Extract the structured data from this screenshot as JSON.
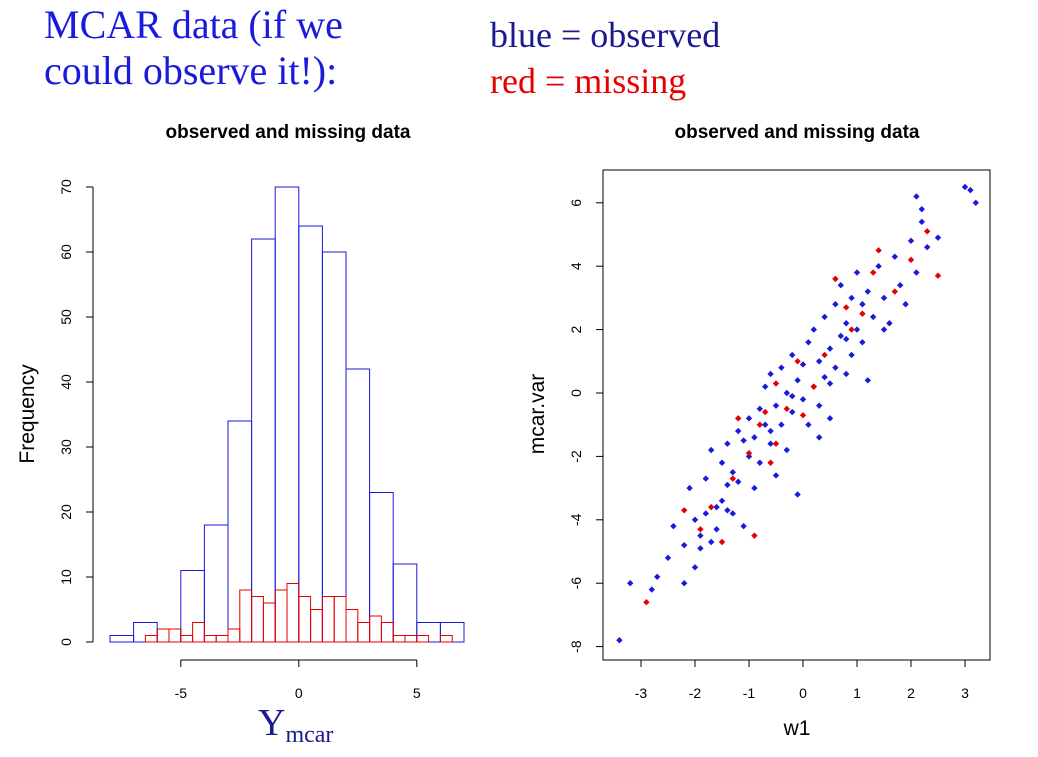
{
  "header": {
    "title": "MCAR data (if we\ncould observe it!):",
    "legend_blue": "blue = observed",
    "legend_red": "red = missing"
  },
  "colors": {
    "observed": "#1a1adc",
    "missing": "#e60000",
    "title": "#1a1adc"
  },
  "chart_data": [
    {
      "type": "bar",
      "subtype": "histogram",
      "title": "observed and missing data",
      "xlabel": "Y",
      "xlabel_subscript": "mcar",
      "ylabel": "Frequency",
      "xlim": [
        -8.5,
        7.5
      ],
      "ylim": [
        0,
        70
      ],
      "xticks": [
        -5,
        0,
        5
      ],
      "yticks": [
        0,
        10,
        20,
        30,
        40,
        50,
        60,
        70
      ],
      "series": [
        {
          "name": "observed",
          "bin_width": 1,
          "bin_starts": [
            -8,
            -7,
            -6,
            -5,
            -4,
            -3,
            -2,
            -1,
            0,
            1,
            2,
            3,
            4,
            5,
            6
          ],
          "values": [
            1,
            3,
            2,
            11,
            18,
            34,
            62,
            70,
            64,
            60,
            42,
            23,
            12,
            3,
            3
          ]
        },
        {
          "name": "missing",
          "bin_width": 0.5,
          "bin_starts": [
            -6.5,
            -6,
            -5.5,
            -5,
            -4.5,
            -4,
            -3.5,
            -3,
            -2.5,
            -2,
            -1.5,
            -1,
            -0.5,
            0,
            0.5,
            1,
            1.5,
            2,
            2.5,
            3,
            3.5,
            4,
            4.5,
            5,
            5.5,
            6
          ],
          "values": [
            1,
            2,
            2,
            1,
            3,
            1,
            1,
            2,
            8,
            7,
            6,
            8,
            9,
            7,
            5,
            7,
            7,
            5,
            3,
            4,
            3,
            1,
            1,
            1,
            0,
            1
          ]
        }
      ]
    },
    {
      "type": "scatter",
      "title": "observed and missing data",
      "xlabel": "w1",
      "ylabel": "mcar.var",
      "xlim": [
        -3.5,
        3.3
      ],
      "ylim": [
        -8.3,
        6.7
      ],
      "xticks": [
        -3,
        -2,
        -1,
        0,
        1,
        2,
        3
      ],
      "yticks": [
        -8,
        -6,
        -4,
        -2,
        0,
        2,
        4,
        6
      ],
      "series": [
        {
          "name": "observed",
          "points": [
            [
              -3.4,
              -7.8
            ],
            [
              -3.2,
              -6.0
            ],
            [
              -2.8,
              -6.2
            ],
            [
              -2.7,
              -5.8
            ],
            [
              -2.5,
              -5.2
            ],
            [
              -2.4,
              -4.2
            ],
            [
              -2.2,
              -6.0
            ],
            [
              -2.2,
              -4.8
            ],
            [
              -2.1,
              -3.0
            ],
            [
              -2.0,
              -4.0
            ],
            [
              -2.0,
              -5.5
            ],
            [
              -1.9,
              -4.5
            ],
            [
              -1.8,
              -3.8
            ],
            [
              -1.8,
              -2.7
            ],
            [
              -1.7,
              -4.7
            ],
            [
              -1.7,
              -1.8
            ],
            [
              -1.6,
              -3.6
            ],
            [
              -1.6,
              -4.3
            ],
            [
              -1.5,
              -3.4
            ],
            [
              -1.5,
              -2.2
            ],
            [
              -1.4,
              -2.9
            ],
            [
              -1.4,
              -1.6
            ],
            [
              -1.3,
              -2.5
            ],
            [
              -1.3,
              -3.8
            ],
            [
              -1.2,
              -1.2
            ],
            [
              -1.2,
              -2.8
            ],
            [
              -1.1,
              -1.5
            ],
            [
              -1.1,
              -4.2
            ],
            [
              -1.0,
              -2.0
            ],
            [
              -1.0,
              -0.8
            ],
            [
              -0.9,
              -1.4
            ],
            [
              -0.9,
              -3.0
            ],
            [
              -0.8,
              -0.5
            ],
            [
              -0.8,
              -2.2
            ],
            [
              -0.7,
              -1.0
            ],
            [
              -0.7,
              0.2
            ],
            [
              -0.6,
              -1.6
            ],
            [
              -0.6,
              0.6
            ],
            [
              -0.5,
              -0.4
            ],
            [
              -0.5,
              -2.6
            ],
            [
              -0.4,
              0.8
            ],
            [
              -0.4,
              -1.0
            ],
            [
              -0.3,
              0.0
            ],
            [
              -0.3,
              -1.8
            ],
            [
              -0.2,
              1.2
            ],
            [
              -0.2,
              -0.6
            ],
            [
              -0.1,
              0.4
            ],
            [
              -0.1,
              -3.2
            ],
            [
              0.0,
              0.9
            ],
            [
              0.0,
              -0.2
            ],
            [
              0.1,
              1.6
            ],
            [
              0.1,
              -1.0
            ],
            [
              0.2,
              0.2
            ],
            [
              0.2,
              2.0
            ],
            [
              0.3,
              -0.4
            ],
            [
              0.3,
              1.0
            ],
            [
              0.4,
              2.4
            ],
            [
              0.4,
              0.5
            ],
            [
              0.5,
              1.4
            ],
            [
              0.5,
              -0.8
            ],
            [
              0.6,
              2.8
            ],
            [
              0.6,
              0.8
            ],
            [
              0.7,
              1.8
            ],
            [
              0.7,
              3.4
            ],
            [
              0.8,
              0.6
            ],
            [
              0.8,
              2.2
            ],
            [
              0.9,
              3.0
            ],
            [
              0.9,
              1.2
            ],
            [
              1.0,
              2.0
            ],
            [
              1.0,
              3.8
            ],
            [
              1.1,
              1.6
            ],
            [
              1.1,
              2.8
            ],
            [
              1.2,
              3.2
            ],
            [
              1.2,
              0.4
            ],
            [
              1.3,
              2.4
            ],
            [
              1.4,
              4.0
            ],
            [
              1.5,
              3.0
            ],
            [
              1.6,
              2.2
            ],
            [
              1.7,
              4.3
            ],
            [
              1.8,
              3.4
            ],
            [
              1.9,
              2.8
            ],
            [
              2.0,
              4.8
            ],
            [
              2.1,
              3.8
            ],
            [
              2.2,
              5.4
            ],
            [
              2.3,
              4.6
            ],
            [
              2.5,
              4.9
            ],
            [
              2.1,
              6.2
            ],
            [
              2.2,
              5.8
            ],
            [
              3.0,
              6.5
            ],
            [
              3.1,
              6.4
            ],
            [
              3.2,
              6.0
            ],
            [
              0.3,
              -1.4
            ],
            [
              -0.2,
              -0.1
            ],
            [
              0.5,
              0.3
            ],
            [
              -0.6,
              -1.2
            ],
            [
              1.5,
              2.0
            ],
            [
              -1.9,
              -4.9
            ],
            [
              -1.4,
              -3.7
            ],
            [
              0.8,
              1.7
            ]
          ]
        },
        {
          "name": "missing",
          "points": [
            [
              -2.9,
              -6.6
            ],
            [
              -2.2,
              -3.7
            ],
            [
              -1.9,
              -4.3
            ],
            [
              -1.7,
              -3.6
            ],
            [
              -1.5,
              -4.7
            ],
            [
              -1.3,
              -2.7
            ],
            [
              -1.2,
              -0.8
            ],
            [
              -1.0,
              -1.9
            ],
            [
              -0.9,
              -4.5
            ],
            [
              -0.8,
              -1.0
            ],
            [
              -0.6,
              -2.2
            ],
            [
              -0.5,
              -1.6
            ],
            [
              -0.5,
              0.3
            ],
            [
              -0.3,
              -0.5
            ],
            [
              -0.1,
              1.0
            ],
            [
              0.2,
              0.2
            ],
            [
              0.4,
              1.2
            ],
            [
              0.6,
              3.6
            ],
            [
              0.9,
              2.0
            ],
            [
              1.1,
              2.5
            ],
            [
              1.3,
              3.8
            ],
            [
              1.4,
              4.5
            ],
            [
              1.7,
              3.2
            ],
            [
              2.0,
              4.2
            ],
            [
              2.3,
              5.1
            ],
            [
              2.5,
              3.7
            ],
            [
              0.8,
              2.7
            ],
            [
              -0.7,
              -0.6
            ],
            [
              0.0,
              -0.7
            ]
          ]
        }
      ]
    }
  ]
}
